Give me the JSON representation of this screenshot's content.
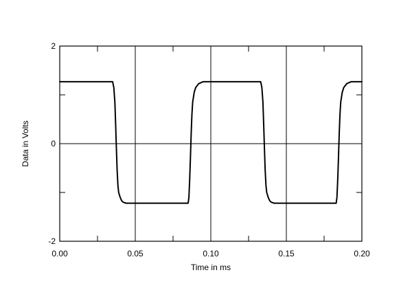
{
  "chart_data": {
    "type": "line",
    "title": "",
    "xlabel": "Time in ms",
    "ylabel": "Data in Volts",
    "xlim": [
      0,
      0.2
    ],
    "ylim": [
      -2,
      2
    ],
    "x_ticks": [
      0.0,
      0.05,
      0.1,
      0.15,
      0.2
    ],
    "x_tick_labels": [
      "0.00",
      "0.05",
      "0.10",
      "0.15",
      "0.20"
    ],
    "y_ticks": [
      -2,
      0,
      2
    ],
    "y_tick_labels": [
      "-2",
      "0",
      "2"
    ],
    "x_grid": [
      0.05,
      0.1,
      0.15
    ],
    "y_grid": [
      0
    ],
    "minor_x_ticks": [
      0.025,
      0.075,
      0.125,
      0.175
    ],
    "minor_y_ticks": [
      -1,
      1
    ],
    "grid": true,
    "legend": false,
    "series": [
      {
        "color": "#000000",
        "x": [
          0.0,
          0.035,
          0.0358,
          0.0365,
          0.037,
          0.0375,
          0.038,
          0.0385,
          0.039,
          0.04,
          0.041,
          0.042,
          0.044,
          0.05,
          0.06,
          0.07,
          0.08,
          0.085,
          0.0855,
          0.086,
          0.0865,
          0.087,
          0.0875,
          0.088,
          0.089,
          0.09,
          0.092,
          0.095,
          0.1,
          0.11,
          0.12,
          0.13,
          0.133,
          0.1338,
          0.1345,
          0.135,
          0.1355,
          0.136,
          0.1365,
          0.137,
          0.138,
          0.139,
          0.14,
          0.142,
          0.15,
          0.16,
          0.17,
          0.18,
          0.183,
          0.1835,
          0.184,
          0.1845,
          0.185,
          0.1855,
          0.186,
          0.187,
          0.188,
          0.19,
          0.193,
          0.2
        ],
        "y": [
          1.27,
          1.27,
          1.15,
          0.85,
          0.4,
          -0.1,
          -0.55,
          -0.85,
          -1.0,
          -1.1,
          -1.17,
          -1.2,
          -1.22,
          -1.22,
          -1.22,
          -1.22,
          -1.22,
          -1.22,
          -1.1,
          -0.75,
          -0.3,
          0.2,
          0.6,
          0.85,
          1.05,
          1.15,
          1.23,
          1.27,
          1.27,
          1.27,
          1.27,
          1.27,
          1.27,
          1.15,
          0.85,
          0.4,
          -0.1,
          -0.55,
          -0.85,
          -1.0,
          -1.1,
          -1.17,
          -1.2,
          -1.22,
          -1.22,
          -1.22,
          -1.22,
          -1.22,
          -1.22,
          -1.1,
          -0.75,
          -0.3,
          0.2,
          0.6,
          0.85,
          1.05,
          1.15,
          1.23,
          1.27,
          1.27
        ]
      }
    ]
  }
}
